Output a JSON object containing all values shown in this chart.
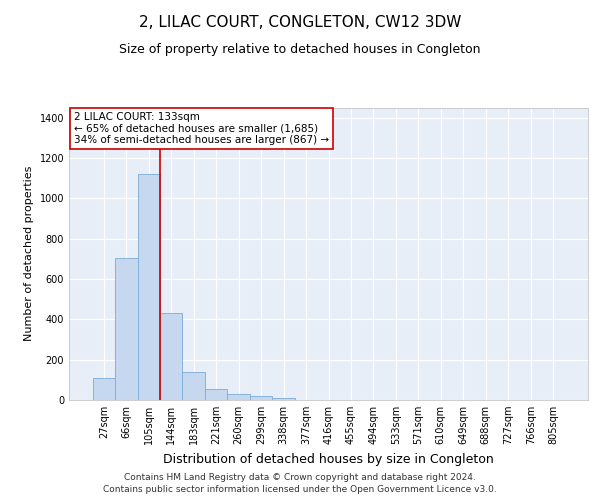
{
  "title": "2, LILAC COURT, CONGLETON, CW12 3DW",
  "subtitle": "Size of property relative to detached houses in Congleton",
  "xlabel": "Distribution of detached houses by size in Congleton",
  "ylabel": "Number of detached properties",
  "categories": [
    "27sqm",
    "66sqm",
    "105sqm",
    "144sqm",
    "183sqm",
    "221sqm",
    "260sqm",
    "299sqm",
    "338sqm",
    "377sqm",
    "416sqm",
    "455sqm",
    "494sqm",
    "533sqm",
    "571sqm",
    "610sqm",
    "649sqm",
    "688sqm",
    "727sqm",
    "766sqm",
    "805sqm"
  ],
  "values": [
    110,
    705,
    1120,
    430,
    140,
    53,
    32,
    18,
    12,
    0,
    0,
    0,
    0,
    0,
    0,
    0,
    0,
    0,
    0,
    0,
    0
  ],
  "bar_color": "#c5d8f0",
  "bar_edge_color": "#7aacd6",
  "vline_color": "#cc0000",
  "vline_x_index": 2.5,
  "annotation_text": "2 LILAC COURT: 133sqm\n← 65% of detached houses are smaller (1,685)\n34% of semi-detached houses are larger (867) →",
  "annotation_box_facecolor": "#ffffff",
  "annotation_box_edgecolor": "#cc0000",
  "ylim": [
    0,
    1450
  ],
  "yticks": [
    0,
    200,
    400,
    600,
    800,
    1000,
    1200,
    1400
  ],
  "plot_bg": "#e8eef8",
  "grid_color": "#ffffff",
  "footer_line1": "Contains HM Land Registry data © Crown copyright and database right 2024.",
  "footer_line2": "Contains public sector information licensed under the Open Government Licence v3.0.",
  "title_fontsize": 11,
  "subtitle_fontsize": 9,
  "xlabel_fontsize": 9,
  "ylabel_fontsize": 8,
  "tick_fontsize": 7,
  "annotation_fontsize": 7.5,
  "footer_fontsize": 6.5
}
